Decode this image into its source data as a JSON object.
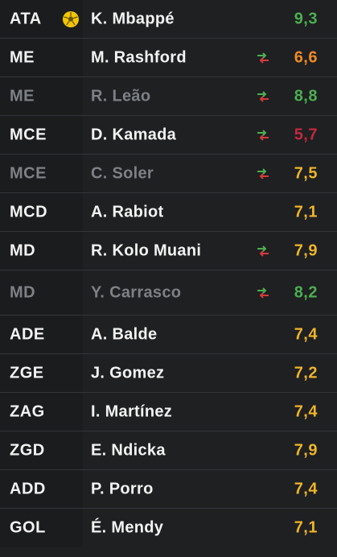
{
  "colors": {
    "green": "#4caf50",
    "yellow": "#f0b429",
    "orange": "#f08a28",
    "red": "#c4283e"
  },
  "players": [
    {
      "pos": "ATA",
      "name": "K. Mbappé",
      "rating": "9,3",
      "color": "#4caf50",
      "icon": "football-icon",
      "dim": false
    },
    {
      "pos": "ME",
      "name": "M. Rashford",
      "rating": "6,6",
      "color": "#f08a28",
      "icon": "substitution-icon",
      "dim": false
    },
    {
      "pos": "ME",
      "name": "R. Leão",
      "rating": "8,8",
      "color": "#4caf50",
      "icon": "substitution-icon",
      "dim": true
    },
    {
      "pos": "MCE",
      "name": "D. Kamada",
      "rating": "5,7",
      "color": "#c4283e",
      "icon": "substitution-icon",
      "dim": false
    },
    {
      "pos": "MCE",
      "name": "C. Soler",
      "rating": "7,5",
      "color": "#f0b429",
      "icon": "substitution-icon",
      "dim": true
    },
    {
      "pos": "MCD",
      "name": "A. Rabiot",
      "rating": "7,1",
      "color": "#f0b429",
      "icon": "",
      "dim": false
    },
    {
      "pos": "MD",
      "name": "R. Kolo Muani",
      "rating": "7,9",
      "color": "#f0b429",
      "icon": "substitution-icon",
      "dim": false
    },
    {
      "pos": "MD",
      "name": "Y. Carrasco",
      "rating": "8,2",
      "color": "#4caf50",
      "icon": "substitution-icon",
      "dim": true
    },
    {
      "pos": "ADE",
      "name": "A. Balde",
      "rating": "7,4",
      "color": "#f0b429",
      "icon": "",
      "dim": false
    },
    {
      "pos": "ZGE",
      "name": "J. Gomez",
      "rating": "7,2",
      "color": "#f0b429",
      "icon": "",
      "dim": false
    },
    {
      "pos": "ZAG",
      "name": "I. Martínez",
      "rating": "7,4",
      "color": "#f0b429",
      "icon": "",
      "dim": false
    },
    {
      "pos": "ZGD",
      "name": "E. Ndicka",
      "rating": "7,9",
      "color": "#f0b429",
      "icon": "",
      "dim": false
    },
    {
      "pos": "ADD",
      "name": "P. Porro",
      "rating": "7,4",
      "color": "#f0b429",
      "icon": "",
      "dim": false
    },
    {
      "pos": "GOL",
      "name": "É. Mendy",
      "rating": "7,1",
      "color": "#f0b429",
      "icon": "",
      "dim": false
    }
  ]
}
